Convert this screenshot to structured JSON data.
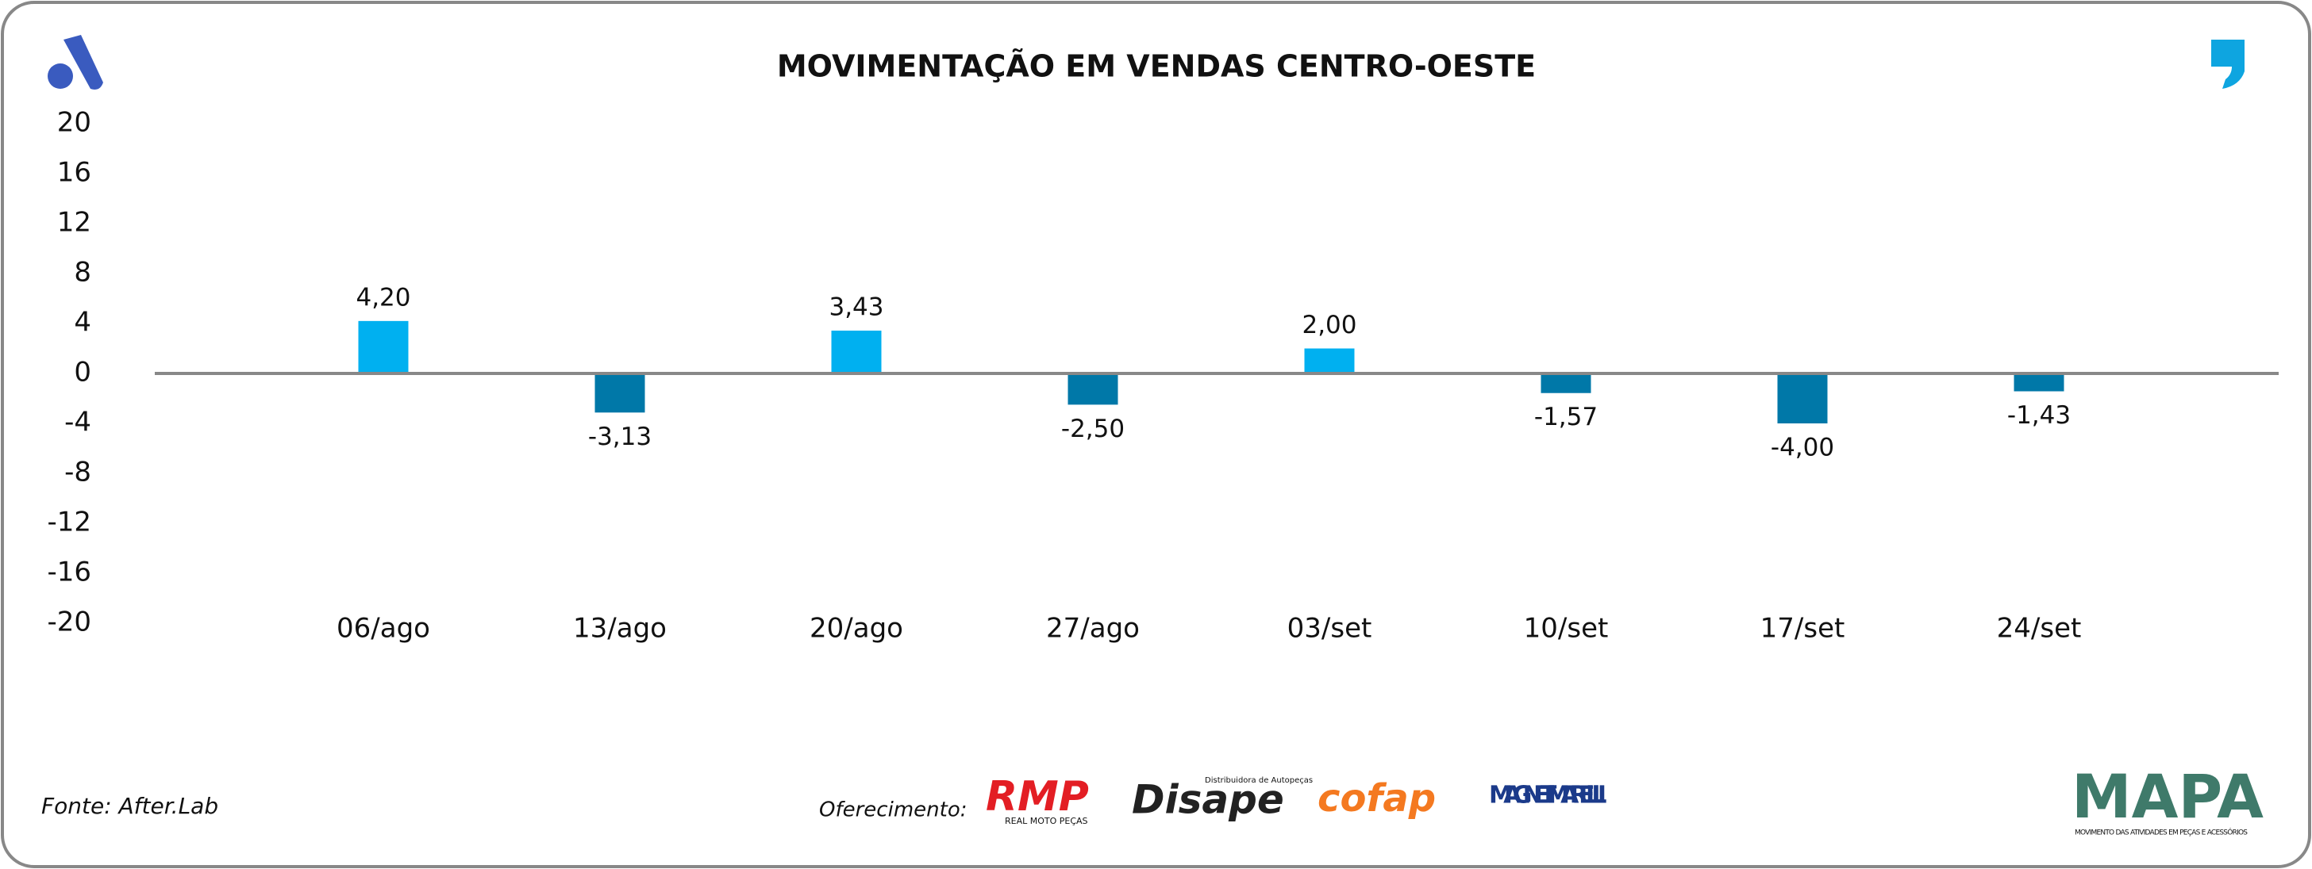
{
  "chart_data": {
    "type": "bar",
    "title": "MOVIMENTAÇÃO EM VENDAS CENTRO-OESTE",
    "categories": [
      "06/ago",
      "13/ago",
      "20/ago",
      "27/ago",
      "03/set",
      "10/set",
      "17/set",
      "24/set"
    ],
    "values": [
      4.2,
      -3.13,
      3.43,
      -2.5,
      2.0,
      -1.57,
      -4.0,
      -1.43
    ],
    "value_labels": [
      "4,20",
      "-3,13",
      "3,43",
      "-2,50",
      "2,00",
      "-1,57",
      "-4,00",
      "-1,43"
    ],
    "positive_color": "#00b0f0",
    "negative_color": "#0078a8",
    "ylim": [
      -20,
      20
    ],
    "yticks": [
      20,
      16,
      12,
      8,
      4,
      0,
      -4,
      -8,
      -12,
      -16,
      -20
    ],
    "grid": false
  },
  "source": "Fonte: After.Lab",
  "sponsor_label": "Oferecimento:",
  "sponsors": [
    {
      "name": "RMP",
      "tagline": "REAL MOTO PEÇAS"
    },
    {
      "name": "Disape",
      "tagline": "Distribuidora de Autopeças"
    },
    {
      "name": "cofap"
    },
    {
      "name": "MAGNETI MARELLI"
    }
  ],
  "brand": {
    "name": "MAPA",
    "tagline": "MOVIMENTO DAS ATIVIDADES EM PEÇAS E ACESSÓRIOS"
  }
}
